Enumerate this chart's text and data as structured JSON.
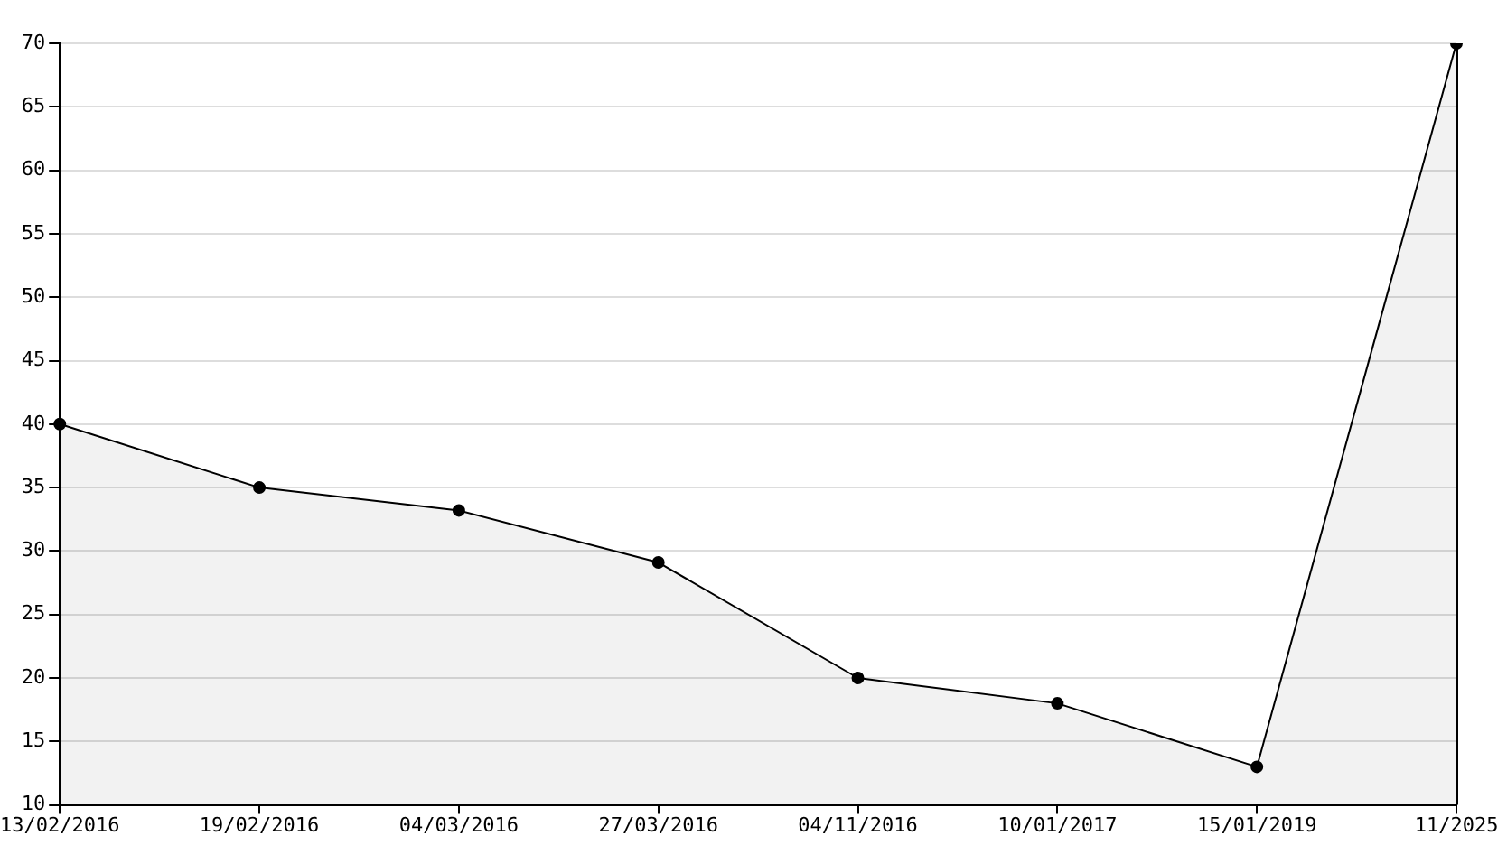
{
  "chart_data": {
    "type": "area",
    "categories": [
      "13/02/2016",
      "19/02/2016",
      "04/03/2016",
      "27/03/2016",
      "04/11/2016",
      "10/01/2017",
      "15/01/2019",
      "11/2025"
    ],
    "series": [
      {
        "color": "#000000",
        "values": [
          40,
          35,
          33.2,
          29.1,
          20,
          18,
          13,
          70
        ]
      }
    ],
    "ylim": [
      10,
      70
    ],
    "yticks": [
      10,
      15,
      20,
      25,
      30,
      35,
      40,
      45,
      50,
      55,
      60,
      65,
      70
    ],
    "grid": "y",
    "legend": false,
    "marker": "circle",
    "line_style": "solid"
  }
}
